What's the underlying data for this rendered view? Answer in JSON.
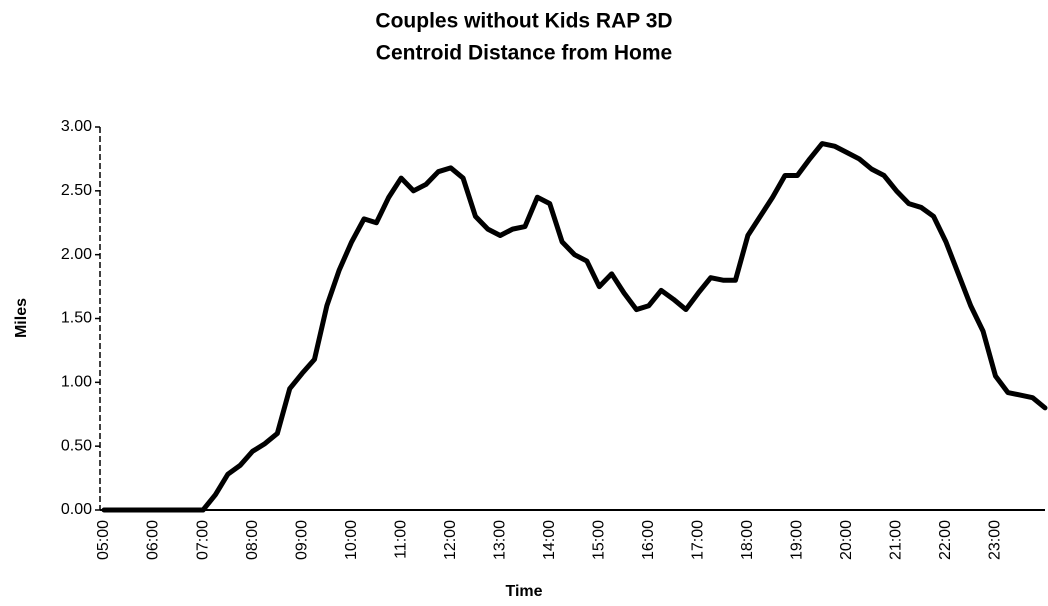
{
  "chart_data": {
    "type": "line",
    "title": "Couples without Kids RAP 3D",
    "subtitle": "Centroid Distance from Home",
    "x_label": "Time",
    "y_label": "Miles",
    "categories": [
      "05:00",
      null,
      null,
      null,
      "06:00",
      null,
      null,
      null,
      "07:00",
      null,
      null,
      null,
      "08:00",
      null,
      null,
      null,
      "09:00",
      null,
      null,
      null,
      "10:00",
      null,
      null,
      null,
      "11:00",
      null,
      null,
      null,
      "12:00",
      null,
      null,
      null,
      "13:00",
      null,
      null,
      null,
      "14:00",
      null,
      null,
      null,
      "15:00",
      null,
      null,
      null,
      "16:00",
      null,
      null,
      null,
      "17:00",
      null,
      null,
      null,
      "18:00",
      null,
      null,
      null,
      "19:00",
      null,
      null,
      null,
      "20:00",
      null,
      null,
      null,
      "21:00",
      null,
      null,
      null,
      "22:00",
      null,
      null,
      null,
      "23:00",
      null,
      null,
      null,
      null
    ],
    "series": [
      {
        "name": "Miles",
        "color": "#000000",
        "values": [
          0,
          0,
          0,
          0,
          0,
          0,
          0,
          0,
          0,
          0.12,
          0.28,
          0.35,
          0.46,
          0.52,
          0.6,
          0.95,
          1.07,
          1.18,
          1.6,
          1.88,
          2.1,
          2.28,
          2.25,
          2.45,
          2.6,
          2.5,
          2.55,
          2.65,
          2.68,
          2.6,
          2.3,
          2.2,
          2.15,
          2.2,
          2.22,
          2.45,
          2.4,
          2.1,
          2.0,
          1.95,
          1.75,
          1.85,
          1.7,
          1.57,
          1.6,
          1.72,
          1.65,
          1.57,
          1.7,
          1.82,
          1.8,
          1.8,
          2.15,
          2.3,
          2.45,
          2.62,
          2.62,
          2.75,
          2.87,
          2.85,
          2.8,
          2.75,
          2.67,
          2.62,
          2.5,
          2.4,
          2.37,
          2.3,
          2.1,
          1.85,
          1.6,
          1.4,
          1.05,
          0.92,
          0.9,
          0.88,
          0.8
        ]
      }
    ],
    "ylim": [
      0,
      3
    ],
    "yticks": [
      {
        "value": 0,
        "label": "0.00"
      },
      {
        "value": 0.5,
        "label": "0.50"
      },
      {
        "value": 1,
        "label": "1.00"
      },
      {
        "value": 1.5,
        "label": "1.50"
      },
      {
        "value": 2,
        "label": "2.00"
      },
      {
        "value": 2.5,
        "label": "2.50"
      },
      {
        "value": 3,
        "label": "3.00"
      }
    ],
    "grid": false
  }
}
